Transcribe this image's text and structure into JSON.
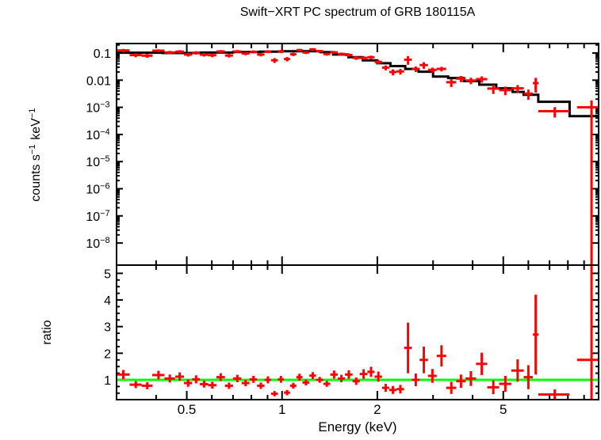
{
  "title": "Swift−XRT PC spectrum of GRB 180115A",
  "colors": {
    "background": "#ffffff",
    "frame": "#000000",
    "data": "#ff0000",
    "model": "#000000",
    "unity_line": "#00ff00",
    "text": "#000000"
  },
  "chart_data": {
    "type": "scatter",
    "title": "Swift−XRT PC spectrum of GRB 180115A",
    "xlabel": "Energy (keV)",
    "x_scale": "log",
    "x_range": [
      0.3,
      10
    ],
    "x_major_ticks": [
      0.5,
      1,
      2,
      5
    ],
    "x_major_tick_labels": [
      "0.5",
      "1",
      "2",
      "5"
    ],
    "x_minor_ticks": [
      0.4,
      0.6,
      0.7,
      0.8,
      0.9,
      3,
      4,
      6,
      7,
      8,
      9
    ],
    "panels": [
      {
        "name": "spectrum",
        "ylabel_segments": [
          "counts s",
          {
            "sup": "−1"
          },
          " keV",
          {
            "sup": "−1"
          }
        ],
        "y_scale": "log",
        "y_range": [
          1.5e-09,
          0.224
        ],
        "y_tick_values": [
          0.1,
          0.01,
          0.001,
          0.0001,
          1e-05,
          1e-06,
          1e-07,
          1e-08
        ],
        "y_tick_labels": [
          [
            "0.1"
          ],
          [
            "0.01"
          ],
          [
            "10",
            {
              "sup": "−3"
            }
          ],
          [
            "10",
            {
              "sup": "−4"
            }
          ],
          [
            "10",
            {
              "sup": "−5"
            }
          ],
          [
            "10",
            {
              "sup": "−6"
            }
          ],
          [
            "10",
            {
              "sup": "−7"
            }
          ],
          [
            "10",
            {
              "sup": "−8"
            }
          ]
        ],
        "grid": false
      },
      {
        "name": "ratio",
        "ylabel_segments": [
          "ratio"
        ],
        "y_scale": "linear",
        "y_range": [
          0.26,
          5.31
        ],
        "y_tick_values": [
          1,
          2,
          3,
          4,
          5
        ],
        "y_tick_labels": [
          [
            "1"
          ],
          [
            "2"
          ],
          [
            "3"
          ],
          [
            "4"
          ],
          [
            "5"
          ]
        ],
        "unity_line_value": 1,
        "grid": false
      }
    ],
    "model_step": {
      "description": "black stepped model line in spectrum panel (counts/s/keV per energy bin)",
      "edges_keV": [
        0.3,
        0.42,
        0.55,
        0.7,
        0.85,
        1.0,
        1.15,
        1.32,
        1.45,
        1.62,
        1.8,
        2.0,
        2.2,
        2.45,
        2.7,
        3.0,
        3.35,
        3.75,
        4.2,
        4.75,
        5.35,
        5.8,
        6.45,
        8.1,
        10.0
      ],
      "values": [
        0.103,
        0.1,
        0.104,
        0.109,
        0.113,
        0.116,
        0.117,
        0.108,
        0.088,
        0.07,
        0.054,
        0.042,
        0.033,
        0.026,
        0.0205,
        0.0135,
        0.012,
        0.0092,
        0.0068,
        0.005,
        0.0037,
        0.0029,
        0.0016,
        0.00047
      ]
    },
    "points_columns": [
      "energy_keV",
      "half_width_keV",
      "counts_s_keV",
      "counts_err",
      "ratio",
      "ratio_err",
      "spike_flag"
    ],
    "points": [
      [
        0.315,
        0.015,
        0.124,
        0.018,
        1.2,
        0.17,
        0
      ],
      [
        0.345,
        0.015,
        0.084,
        0.014,
        0.82,
        0.13,
        0
      ],
      [
        0.375,
        0.015,
        0.08,
        0.013,
        0.78,
        0.13,
        0
      ],
      [
        0.407,
        0.018,
        0.122,
        0.016,
        1.18,
        0.16,
        0
      ],
      [
        0.442,
        0.017,
        0.105,
        0.015,
        1.05,
        0.15,
        0
      ],
      [
        0.475,
        0.015,
        0.112,
        0.016,
        1.12,
        0.16,
        0
      ],
      [
        0.505,
        0.015,
        0.088,
        0.014,
        0.88,
        0.14,
        0
      ],
      [
        0.535,
        0.015,
        0.102,
        0.015,
        1.02,
        0.15,
        0
      ],
      [
        0.567,
        0.017,
        0.087,
        0.013,
        0.84,
        0.13,
        0
      ],
      [
        0.602,
        0.018,
        0.083,
        0.013,
        0.8,
        0.13,
        0
      ],
      [
        0.64,
        0.02,
        0.114,
        0.015,
        1.1,
        0.15,
        0
      ],
      [
        0.68,
        0.02,
        0.081,
        0.013,
        0.78,
        0.12,
        0
      ],
      [
        0.722,
        0.022,
        0.114,
        0.015,
        1.05,
        0.14,
        0
      ],
      [
        0.767,
        0.022,
        0.096,
        0.013,
        0.88,
        0.12,
        0
      ],
      [
        0.812,
        0.022,
        0.111,
        0.014,
        1.02,
        0.13,
        0
      ],
      [
        0.857,
        0.023,
        0.088,
        0.013,
        0.78,
        0.12,
        0
      ],
      [
        0.902,
        0.022,
        0.113,
        0.014,
        1.0,
        0.13,
        0
      ],
      [
        0.947,
        0.023,
        0.054,
        0.011,
        0.48,
        0.1,
        0
      ],
      [
        0.992,
        0.022,
        0.115,
        0.014,
        1.02,
        0.13,
        0
      ],
      [
        1.037,
        0.023,
        0.06,
        0.011,
        0.52,
        0.1,
        0
      ],
      [
        1.085,
        0.025,
        0.09,
        0.013,
        0.78,
        0.11,
        0
      ],
      [
        1.135,
        0.025,
        0.128,
        0.015,
        1.1,
        0.13,
        0
      ],
      [
        1.19,
        0.03,
        0.105,
        0.013,
        0.9,
        0.11,
        0
      ],
      [
        1.25,
        0.03,
        0.136,
        0.015,
        1.16,
        0.13,
        0
      ],
      [
        1.315,
        0.035,
        0.117,
        0.013,
        1.0,
        0.11,
        0
      ],
      [
        1.385,
        0.035,
        0.092,
        0.012,
        0.85,
        0.11,
        0
      ],
      [
        1.46,
        0.04,
        0.106,
        0.013,
        1.2,
        0.15,
        0
      ],
      [
        1.54,
        0.04,
        0.092,
        0.012,
        1.05,
        0.14,
        0
      ],
      [
        1.625,
        0.045,
        0.084,
        0.011,
        1.2,
        0.16,
        0
      ],
      [
        1.715,
        0.045,
        0.066,
        0.01,
        0.95,
        0.14,
        0
      ],
      [
        1.81,
        0.05,
        0.066,
        0.01,
        1.22,
        0.18,
        0
      ],
      [
        1.91,
        0.05,
        0.07,
        0.01,
        1.3,
        0.19,
        0
      ],
      [
        2.015,
        0.055,
        0.047,
        0.008,
        1.12,
        0.19,
        0
      ],
      [
        2.125,
        0.055,
        0.029,
        0.006,
        0.7,
        0.15,
        0
      ],
      [
        2.24,
        0.06,
        0.02,
        0.005,
        0.62,
        0.15,
        0
      ],
      [
        2.365,
        0.065,
        0.021,
        0.005,
        0.65,
        0.16,
        0
      ],
      [
        2.5,
        0.07,
        0.057,
        0.02,
        2.2,
        0.95,
        0
      ],
      [
        2.645,
        0.075,
        0.026,
        0.006,
        1.0,
        0.24,
        0
      ],
      [
        2.805,
        0.085,
        0.036,
        0.01,
        1.75,
        0.5,
        0
      ],
      [
        2.985,
        0.095,
        0.024,
        0.005,
        1.15,
        0.26,
        0
      ],
      [
        3.19,
        0.11,
        0.026,
        0.005,
        1.9,
        0.4,
        0
      ],
      [
        3.425,
        0.125,
        0.0084,
        0.0028,
        0.7,
        0.23,
        0
      ],
      [
        3.675,
        0.125,
        0.0114,
        0.003,
        0.95,
        0.25,
        0
      ],
      [
        3.95,
        0.15,
        0.0097,
        0.0026,
        1.05,
        0.28,
        0
      ],
      [
        4.275,
        0.175,
        0.0109,
        0.0028,
        1.6,
        0.42,
        0
      ],
      [
        4.65,
        0.2,
        0.0049,
        0.0018,
        0.72,
        0.26,
        0
      ],
      [
        5.075,
        0.225,
        0.0043,
        0.0015,
        0.85,
        0.3,
        0
      ],
      [
        5.55,
        0.25,
        0.005,
        0.0016,
        1.35,
        0.42,
        0
      ],
      [
        6.0,
        0.2,
        0.0032,
        0.0013,
        1.1,
        0.45,
        0
      ],
      [
        6.33,
        0.13,
        0.0078,
        0.0043,
        2.7,
        1.5,
        0
      ],
      [
        7.27,
        0.82,
        0.00072,
        0.0003,
        0.45,
        0.19,
        0
      ],
      [
        9.5,
        0.95,
        0.001,
        0.0008,
        1.75,
        1.8,
        1
      ]
    ],
    "legend": null,
    "notes": "spike_flag=1: error bar drawn to bottom of spectrum panel and full height of ratio panel (right-edge red spike)"
  }
}
